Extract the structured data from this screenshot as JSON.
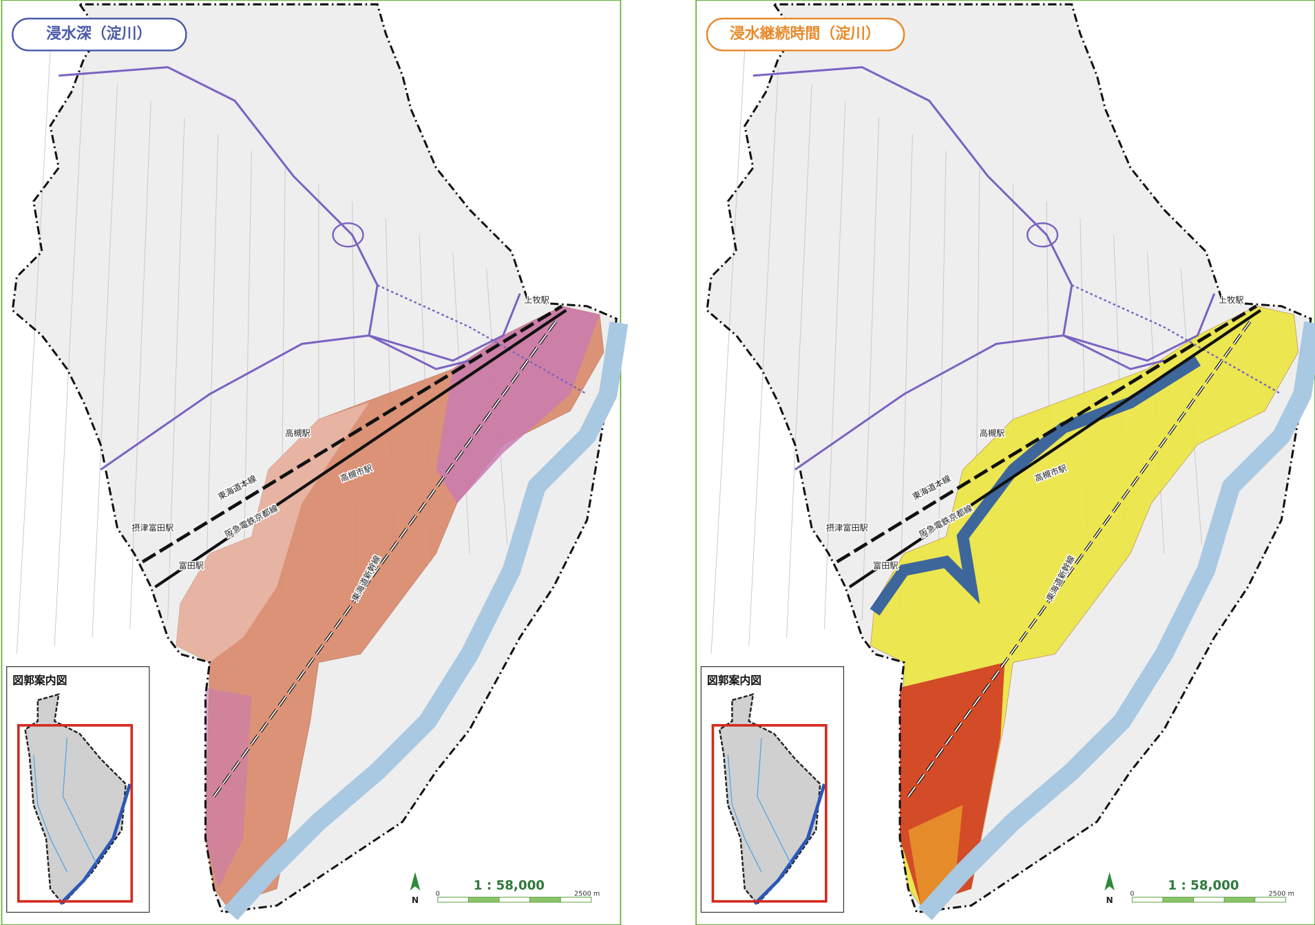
{
  "panels": [
    {
      "title": "浸水深（淀川）",
      "labels": [
        "上牧駅",
        "高槻駅",
        "高槻市駅",
        "東海道本線",
        "阪急電鉄京都線",
        "摂津富田駅",
        "富田駅",
        "東海道新幹線"
      ],
      "inset_title": "図郭案内図",
      "north": "N",
      "scale_ratio": "1 : 58,000",
      "scale_start": "0",
      "scale_end": "2500 m"
    },
    {
      "title": "浸水継続時間（淀川）",
      "labels": [
        "上牧駅",
        "高槻駅",
        "高槻市駅",
        "東海道本線",
        "阪急電鉄京都線",
        "摂津富田駅",
        "富田駅",
        "東海道新幹線"
      ],
      "inset_title": "図郭案内図",
      "north": "N",
      "scale_ratio": "1 : 58,000",
      "scale_start": "0",
      "scale_end": "2500 m"
    }
  ]
}
